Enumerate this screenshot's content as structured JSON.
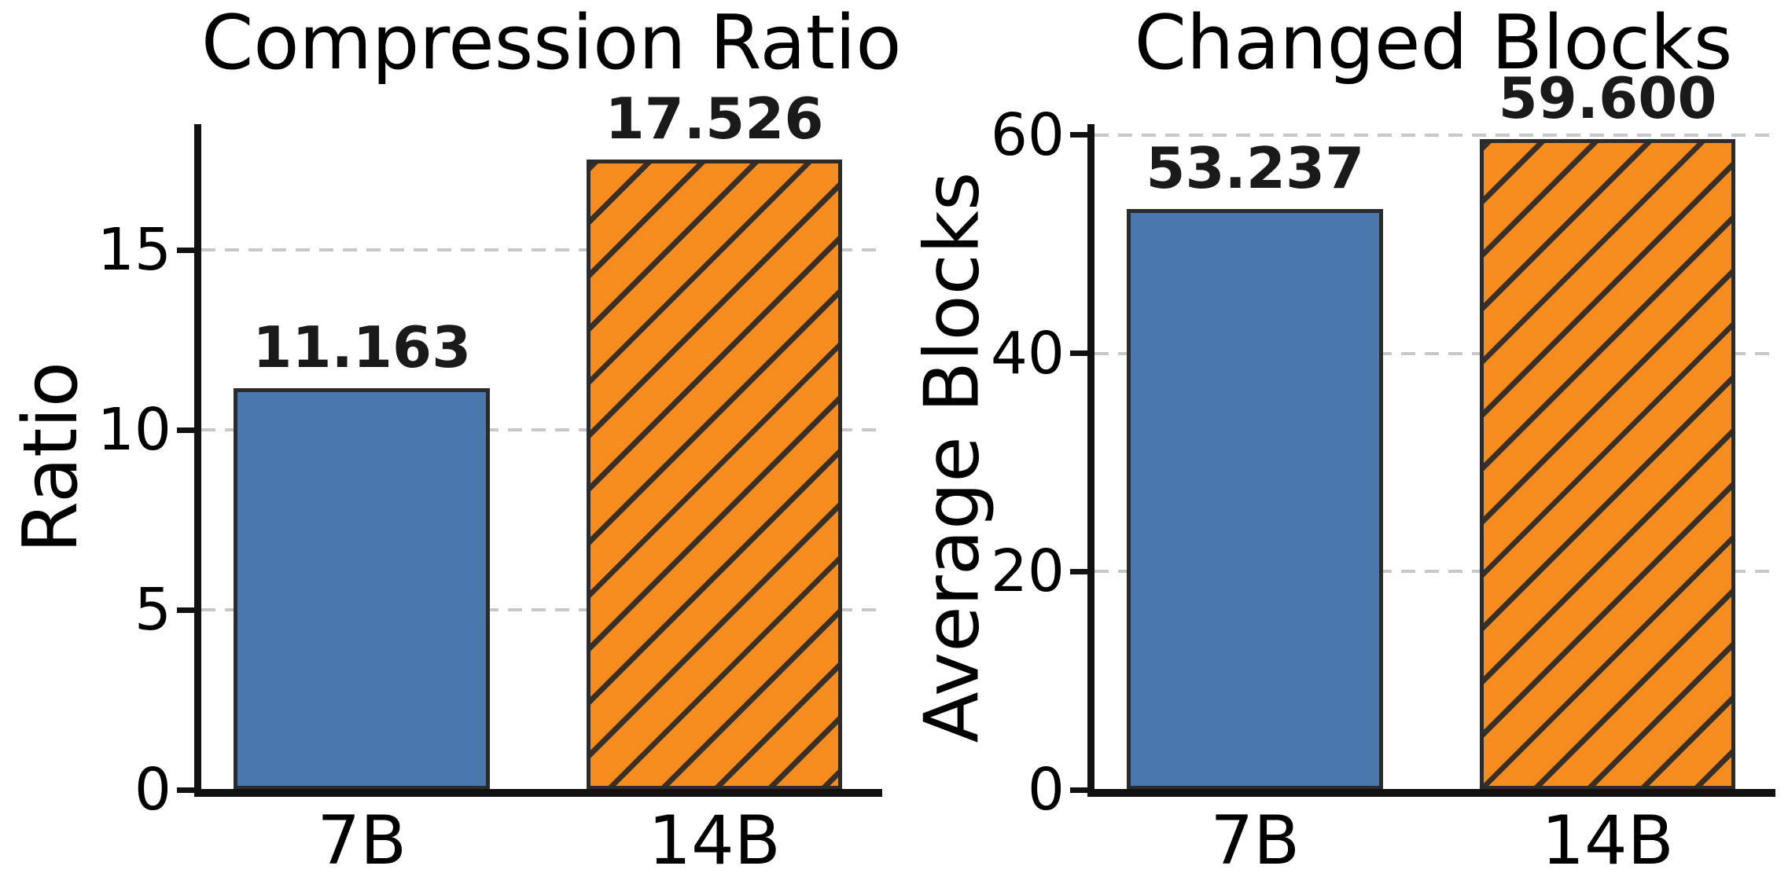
{
  "style": {
    "bar_fill_colors": [
      "#4A78AD",
      "#F78C1E"
    ],
    "bar_edge_color": "#2B2B2B",
    "hatches": [
      "none",
      "forward-diagonal"
    ],
    "grid_color": "#C8C8C8",
    "axis_color": "#111111",
    "value_label_color": "#1a1a1a",
    "background": "#ffffff"
  },
  "chart_data": [
    {
      "type": "bar",
      "title": "Compression Ratio",
      "xlabel": "",
      "ylabel": "Ratio",
      "categories": [
        "7B",
        "14B"
      ],
      "values": [
        11.163,
        17.526
      ],
      "value_labels": [
        "11.163",
        "17.526"
      ],
      "yticks": [
        0,
        5,
        10,
        15
      ],
      "ytick_labels": [
        "0",
        "5",
        "10",
        "15"
      ],
      "ylim": [
        0,
        18.5
      ],
      "grid": true,
      "grid_style": "dashed",
      "legend": null
    },
    {
      "type": "bar",
      "title": "Changed Blocks",
      "xlabel": "",
      "ylabel": "Average Blocks",
      "categories": [
        "7B",
        "14B"
      ],
      "values": [
        53.237,
        59.6
      ],
      "value_labels": [
        "53.237",
        "59.600"
      ],
      "yticks": [
        0,
        20,
        40,
        60
      ],
      "ytick_labels": [
        "0",
        "20",
        "40",
        "60"
      ],
      "ylim": [
        0,
        61.0
      ],
      "grid": true,
      "grid_style": "dashed",
      "legend": null
    }
  ]
}
